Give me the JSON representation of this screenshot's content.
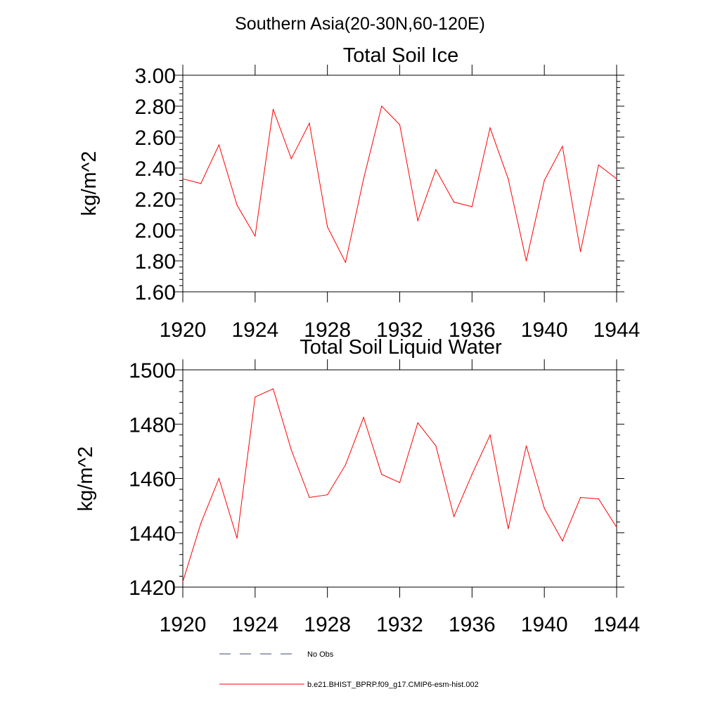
{
  "figure": {
    "suptitle": "Southern Asia(20-30N,60-120E)"
  },
  "legend": {
    "position": "bottom",
    "entries": [
      {
        "label": "No Obs",
        "color": "#3b4a7a",
        "style": "dashed"
      },
      {
        "label": "b.e21.BHIST_BPRP.f09_g17.CMIP6-esm-hist.002",
        "color": "#ff0000",
        "style": "solid"
      }
    ]
  },
  "chart_data": [
    {
      "type": "line",
      "title": "Total Soil Ice",
      "xlabel": "",
      "ylabel": "kg/m^2",
      "xlim": [
        1920,
        1944
      ],
      "ylim": [
        1.6,
        3.0
      ],
      "xticks": [
        "1920",
        "1924",
        "1928",
        "1932",
        "1936",
        "1940",
        "1944"
      ],
      "yticks": [
        "1.60",
        "1.80",
        "2.00",
        "2.20",
        "2.40",
        "2.60",
        "2.80",
        "3.00"
      ],
      "grid": false,
      "x": [
        1920,
        1921,
        1922,
        1923,
        1924,
        1925,
        1926,
        1927,
        1928,
        1929,
        1930,
        1931,
        1932,
        1933,
        1934,
        1935,
        1936,
        1937,
        1938,
        1939,
        1940,
        1941,
        1942,
        1943,
        1944
      ],
      "series": [
        {
          "name": "b.e21.BHIST_BPRP.f09_g17.CMIP6-esm-hist.002",
          "color": "#ff0000",
          "values": [
            2.33,
            2.3,
            2.55,
            2.16,
            1.96,
            2.78,
            2.46,
            2.69,
            2.02,
            1.79,
            2.33,
            2.8,
            2.68,
            2.06,
            2.39,
            2.18,
            2.15,
            2.66,
            2.33,
            1.8,
            2.32,
            2.54,
            1.86,
            2.42,
            2.33
          ]
        }
      ]
    },
    {
      "type": "line",
      "title": "Total Soil Liquid Water",
      "xlabel": "",
      "ylabel": "kg/m^2",
      "xlim": [
        1920,
        1944
      ],
      "ylim": [
        1420,
        1500
      ],
      "xticks": [
        "1920",
        "1924",
        "1928",
        "1932",
        "1936",
        "1940",
        "1944"
      ],
      "yticks": [
        "1420",
        "1440",
        "1460",
        "1480",
        "1500"
      ],
      "grid": false,
      "x": [
        1920,
        1921,
        1922,
        1923,
        1924,
        1925,
        1926,
        1927,
        1928,
        1929,
        1930,
        1931,
        1932,
        1933,
        1934,
        1935,
        1936,
        1937,
        1938,
        1939,
        1940,
        1941,
        1942,
        1943,
        1944
      ],
      "series": [
        {
          "name": "b.e21.BHIST_BPRP.f09_g17.CMIP6-esm-hist.002",
          "color": "#ff0000",
          "values": [
            1422,
            1443.5,
            1460,
            1438,
            1490,
            1493,
            1470.5,
            1453,
            1454,
            1465,
            1482.5,
            1461.5,
            1458.5,
            1480.5,
            1472,
            1446,
            1461.5,
            1476,
            1441.5,
            1472,
            1449,
            1437,
            1453,
            1452.5,
            1442
          ]
        }
      ]
    }
  ]
}
